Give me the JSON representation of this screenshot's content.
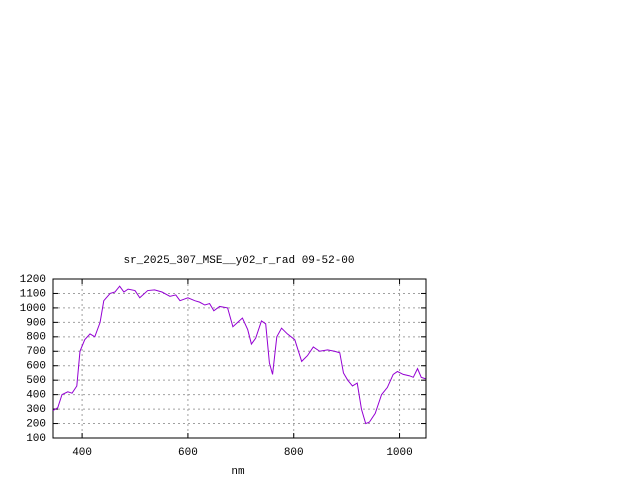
{
  "chart_data": {
    "type": "line",
    "title": "sr_2025_307_MSE__y02_r_rad 09-52-00",
    "x_label": "nm",
    "x": [
      345,
      354,
      362,
      373,
      381,
      390,
      396,
      405,
      415,
      424,
      434,
      441,
      453,
      462,
      471,
      479,
      487,
      500,
      509,
      524,
      537,
      551,
      566,
      577,
      585,
      600,
      613,
      622,
      632,
      641,
      649,
      660,
      675,
      685,
      694,
      703,
      713,
      720,
      728,
      739,
      747,
      754,
      760,
      768,
      777,
      788,
      802,
      815,
      826,
      837,
      849,
      864,
      877,
      887,
      894,
      902,
      911,
      920,
      928,
      936,
      943,
      954,
      966,
      977,
      988,
      996,
      1007,
      1019,
      1026,
      1034,
      1041,
      1049
    ],
    "series": [
      {
        "color": "#9400d3",
        "values": [
          290,
          310,
          400,
          420,
          410,
          460,
          700,
          780,
          820,
          800,
          900,
          1050,
          1100,
          1110,
          1150,
          1110,
          1130,
          1120,
          1070,
          1120,
          1125,
          1110,
          1080,
          1090,
          1050,
          1070,
          1050,
          1040,
          1020,
          1030,
          980,
          1010,
          1000,
          870,
          900,
          930,
          850,
          750,
          790,
          910,
          890,
          620,
          540,
          800,
          860,
          820,
          780,
          630,
          670,
          730,
          700,
          710,
          700,
          690,
          550,
          500,
          460,
          480,
          300,
          200,
          210,
          270,
          400,
          450,
          540,
          560,
          540,
          530,
          520,
          580,
          520,
          510
        ]
      }
    ],
    "xlim": [
      345,
      1050
    ],
    "ylim": [
      100,
      1200
    ],
    "xticks": [
      400,
      600,
      800,
      1000
    ],
    "yticks": [
      100,
      200,
      300,
      400,
      500,
      600,
      700,
      800,
      900,
      1000,
      1100,
      1200
    ],
    "grid": true
  }
}
